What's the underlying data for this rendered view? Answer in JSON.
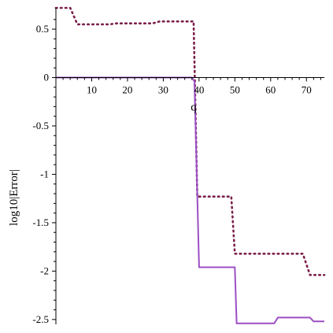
{
  "chart_data": {
    "type": "line",
    "title": "",
    "xlabel": "q",
    "ylabel": "log10|Error|",
    "xlim": [
      0,
      75
    ],
    "ylim": [
      -2.55,
      0.72
    ],
    "x_ticks": [
      10,
      20,
      30,
      40,
      50,
      60,
      70
    ],
    "y_ticks": [
      0.5,
      0,
      -0.5,
      -1,
      -1.5,
      -2,
      -2.5
    ],
    "x_tick_labels": [
      "10",
      "20",
      "30",
      "40",
      "50",
      "60",
      "70"
    ],
    "y_tick_labels": [
      "0.5",
      "0",
      "-0.5",
      "-1",
      "-1.5",
      "-2",
      "-2.5"
    ],
    "grid": false,
    "series": [
      {
        "style": "dotted",
        "color": "#7a1f4a",
        "points": [
          [
            0,
            0.72
          ],
          [
            4,
            0.72
          ],
          [
            6,
            0.55
          ],
          [
            15,
            0.55
          ],
          [
            17,
            0.56
          ],
          [
            27,
            0.56
          ],
          [
            29,
            0.58
          ],
          [
            38.5,
            0.58
          ],
          [
            38.5,
            0.55
          ],
          [
            39.5,
            -1.23
          ],
          [
            49,
            -1.23
          ],
          [
            50,
            -1.82
          ],
          [
            69,
            -1.82
          ],
          [
            71,
            -2.04
          ],
          [
            75,
            -2.04
          ]
        ]
      },
      {
        "style": "solid",
        "color": "#9b4fc4",
        "points": [
          [
            0,
            0
          ],
          [
            38,
            0
          ],
          [
            38.7,
            -0.04
          ],
          [
            40,
            -1.96
          ],
          [
            50,
            -1.96
          ],
          [
            50.5,
            -2.54
          ],
          [
            61,
            -2.54
          ],
          [
            62,
            -2.48
          ],
          [
            71,
            -2.48
          ],
          [
            72,
            -2.52
          ],
          [
            75,
            -2.52
          ]
        ]
      }
    ]
  }
}
